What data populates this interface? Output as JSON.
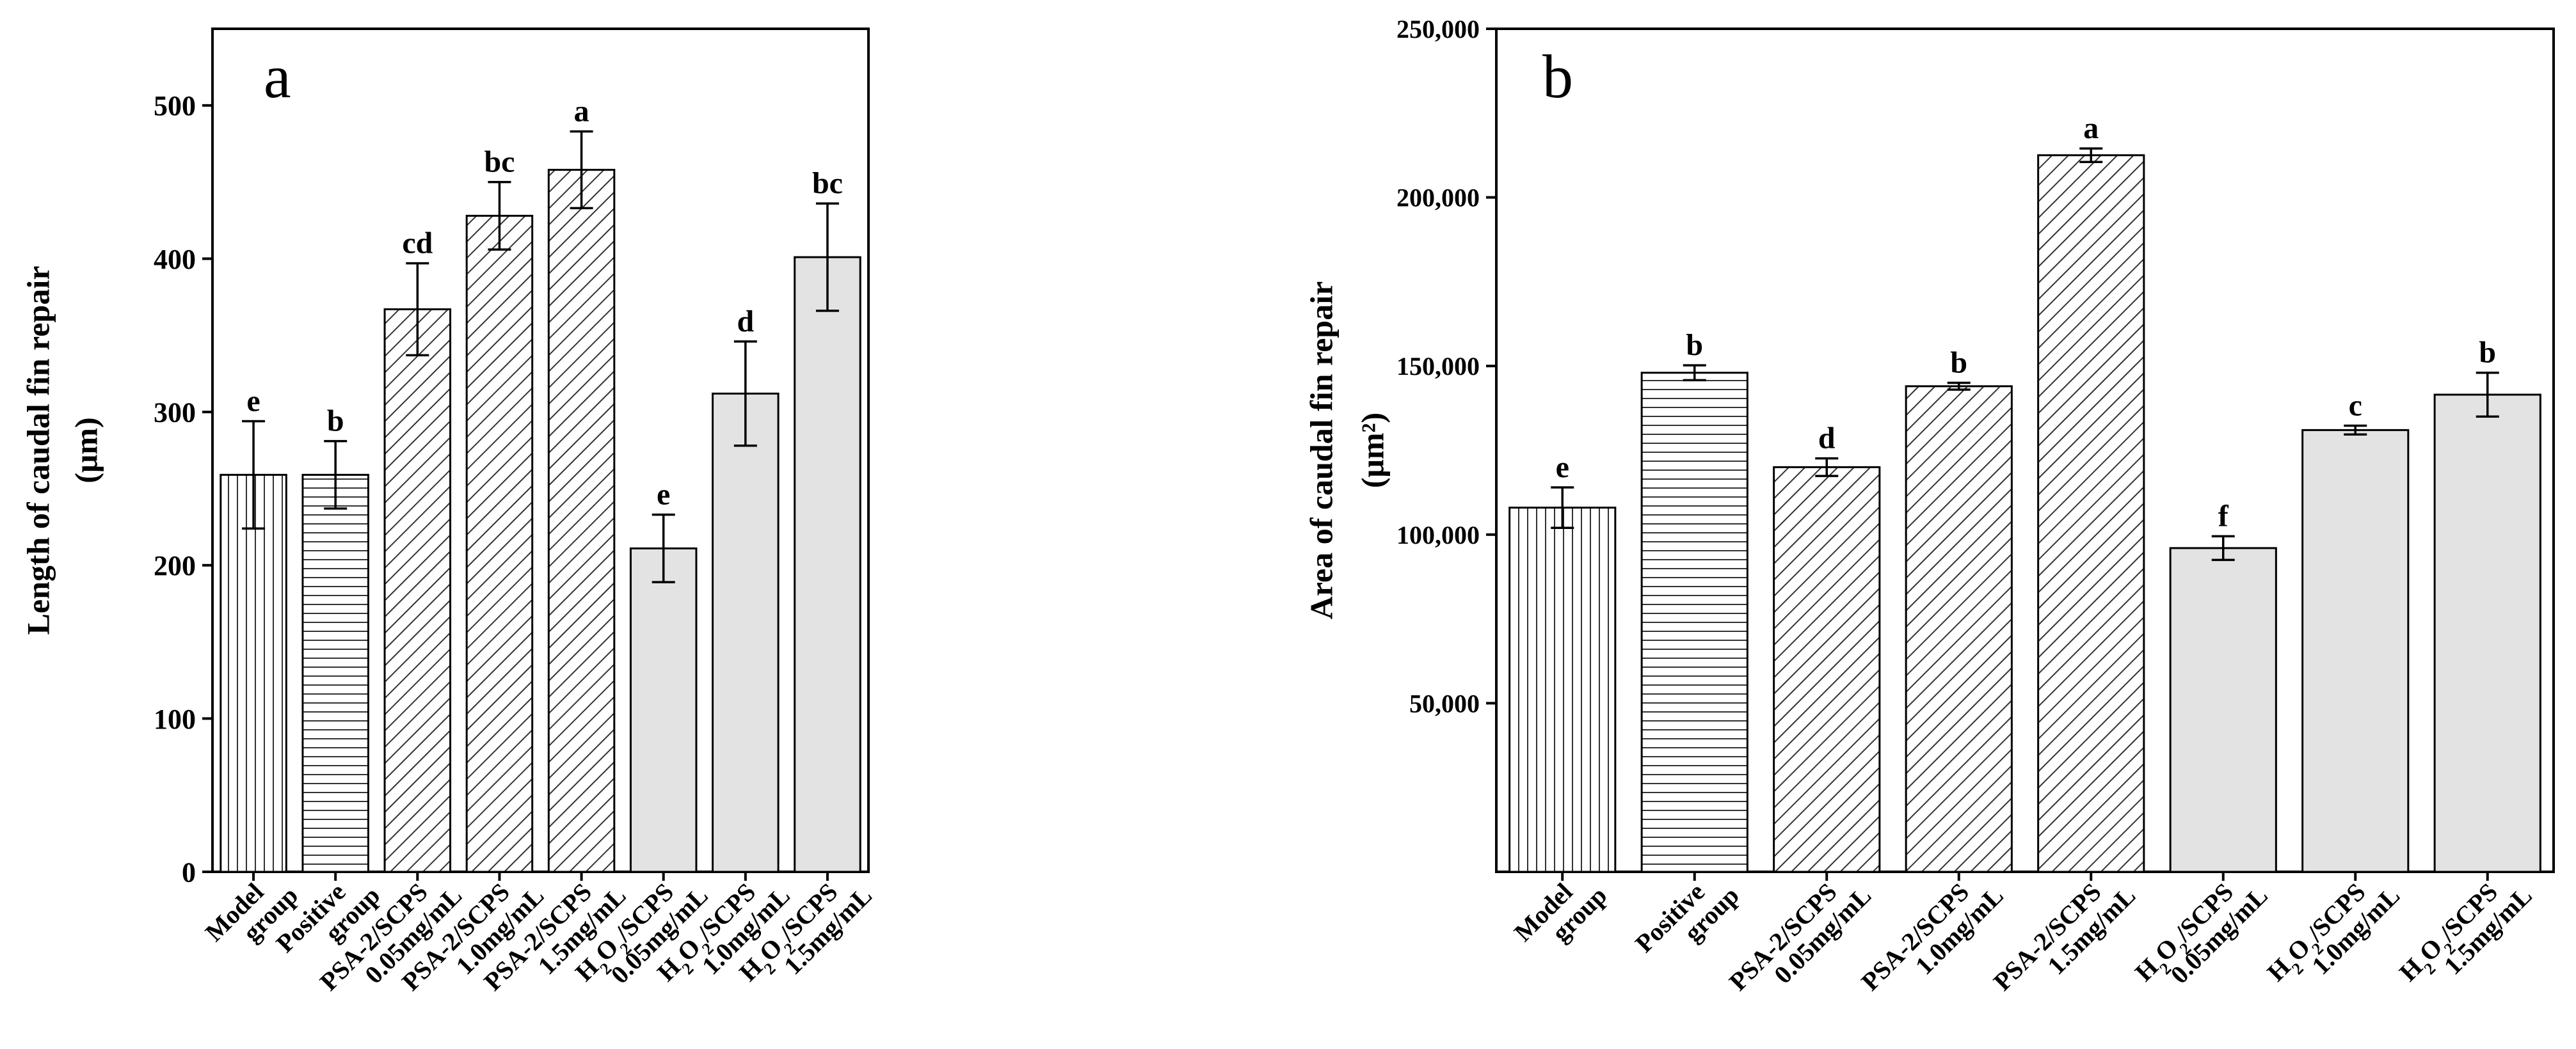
{
  "figure_title": "",
  "chart_data": [
    {
      "type": "bar",
      "panel_label": "a",
      "title": "",
      "ylabel_lines": [
        "Length of caudal fin repair",
        "(μm)"
      ],
      "ylim": [
        0,
        550
      ],
      "yticks": [
        0,
        100,
        200,
        300,
        400,
        500
      ],
      "ytick_labels": [
        "0",
        "100",
        "200",
        "300",
        "400",
        "500"
      ],
      "grid": false,
      "categories": [
        {
          "lines": [
            {
              "t": "Model"
            },
            {
              "t": "group"
            }
          ]
        },
        {
          "lines": [
            {
              "t": "Positive"
            },
            {
              "t": "group"
            }
          ]
        },
        {
          "lines": [
            {
              "t": "PSA-2/SCPS"
            },
            {
              "t": "0.05mg/mL"
            }
          ]
        },
        {
          "lines": [
            {
              "t": "PSA-2/SCPS"
            },
            {
              "t": "1.0mg/mL"
            }
          ]
        },
        {
          "lines": [
            {
              "t": "PSA-2/SCPS"
            },
            {
              "t": "1.5mg/mL"
            }
          ]
        },
        {
          "lines": [
            {
              "t": "H",
              "sub": "2",
              "t2": "O",
              "sub2": "2",
              "t3": "/SCPS"
            },
            {
              "t": "0.05mg/mL"
            }
          ]
        },
        {
          "lines": [
            {
              "t": "H",
              "sub": "2",
              "t2": "O",
              "sub2": "2",
              "t3": "/SCPS"
            },
            {
              "t": "1.0mg/mL"
            }
          ]
        },
        {
          "lines": [
            {
              "t": "H",
              "sub": "2",
              "t2": "O",
              "sub2": "2",
              "t3": "/SCPS"
            },
            {
              "t": "1.5mg/mL"
            }
          ]
        }
      ],
      "values": [
        259,
        259,
        367,
        428,
        458,
        211,
        312,
        401
      ],
      "errors": [
        35,
        22,
        30,
        22,
        25,
        22,
        34,
        35
      ],
      "sig_letters": [
        "e",
        "b",
        "cd",
        "bc",
        "a",
        "e",
        "d",
        "bc"
      ],
      "patterns": [
        "vertical",
        "horizontal",
        "diagonal",
        "diagonal",
        "diagonal",
        "gray",
        "gray",
        "gray"
      ],
      "fill_gray": "#e3e3e3"
    },
    {
      "type": "bar",
      "panel_label": "b",
      "title": "",
      "ylabel_lines": [
        "Area of caudal fin repair",
        "(μm²)"
      ],
      "ylim": [
        0,
        250000
      ],
      "yticks": [
        50000,
        100000,
        150000,
        200000,
        250000
      ],
      "ytick_labels": [
        "50,000",
        "100,000",
        "150,000",
        "200,000",
        "250,000"
      ],
      "grid": false,
      "categories": [
        {
          "lines": [
            {
              "t": "Model"
            },
            {
              "t": "group"
            }
          ]
        },
        {
          "lines": [
            {
              "t": "Positive"
            },
            {
              "t": "group"
            }
          ]
        },
        {
          "lines": [
            {
              "t": "PSA-2/SCPS"
            },
            {
              "t": "0.05mg/mL"
            }
          ]
        },
        {
          "lines": [
            {
              "t": "PSA-2/SCPS"
            },
            {
              "t": "1.0mg/mL"
            }
          ]
        },
        {
          "lines": [
            {
              "t": "PSA-2/SCPS"
            },
            {
              "t": "1.5mg/mL"
            }
          ]
        },
        {
          "lines": [
            {
              "t": "H",
              "sub": "2",
              "t2": "O",
              "sub2": "2",
              "t3": "/SCPS"
            },
            {
              "t": "0.05mg/mL"
            }
          ]
        },
        {
          "lines": [
            {
              "t": "H",
              "sub": "2",
              "t2": "O",
              "sub2": "2",
              "t3": "/SCPS"
            },
            {
              "t": "1.0mg/mL"
            }
          ]
        },
        {
          "lines": [
            {
              "t": "H",
              "sub": "2",
              "t2": "O",
              "sub2": "2",
              "t3": "/SCPS"
            },
            {
              "t": "1.5mg/mL"
            }
          ]
        }
      ],
      "values": [
        108000,
        148000,
        120000,
        144000,
        212500,
        96000,
        131000,
        141500
      ],
      "errors": [
        6000,
        2200,
        2600,
        1000,
        2000,
        3500,
        1300,
        6500
      ],
      "sig_letters": [
        "e",
        "b",
        "d",
        "b",
        "a",
        "f",
        "c",
        "b"
      ],
      "patterns": [
        "vertical",
        "horizontal",
        "diagonal",
        "diagonal",
        "diagonal",
        "gray",
        "gray",
        "gray"
      ],
      "fill_gray": "#e3e3e3"
    }
  ]
}
